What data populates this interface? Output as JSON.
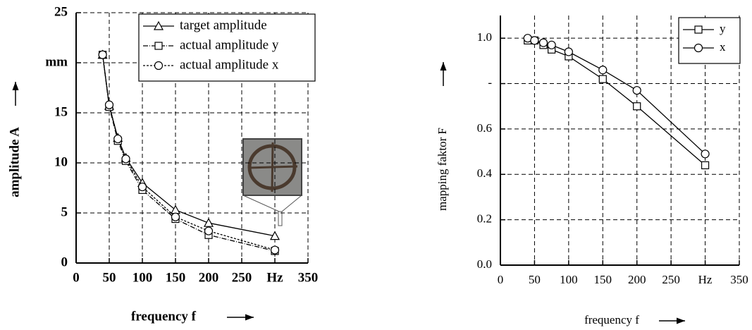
{
  "chart_data": [
    {
      "type": "line",
      "xlabel": "frequency f",
      "ylabel": "amplitude A",
      "x": [
        40,
        50,
        63,
        75,
        100,
        150,
        200,
        300
      ],
      "series": [
        {
          "name": "target amplitude",
          "color": "#000000",
          "marker": "triangle",
          "dash": "solid",
          "values": [
            20.8,
            15.7,
            12.5,
            10.5,
            8.0,
            5.3,
            4.0,
            2.7
          ]
        },
        {
          "name": "actual amplitude y",
          "color": "#000000",
          "marker": "square",
          "dash": "dash-dot",
          "values": [
            20.8,
            15.6,
            12.2,
            10.2,
            7.3,
            4.4,
            2.8,
            1.2
          ]
        },
        {
          "name": "actual amplitude x",
          "color": "#000000",
          "marker": "circle",
          "dash": "dotted",
          "values": [
            20.8,
            15.8,
            12.4,
            10.4,
            7.6,
            4.6,
            3.2,
            1.3
          ]
        }
      ],
      "xlim": [
        0,
        350
      ],
      "xticks": [
        0,
        50,
        100,
        150,
        200,
        250,
        {
          "value": 300,
          "label": "Hz"
        },
        350
      ],
      "ylim": [
        0,
        25
      ],
      "yticks": [
        0,
        5,
        10,
        15,
        {
          "value": 20,
          "label": "mm"
        },
        25
      ],
      "grid": true,
      "legend": "upper right"
    },
    {
      "type": "line",
      "xlabel": "frequency f",
      "ylabel": "mapping faktor F",
      "x": [
        40,
        50,
        63,
        75,
        100,
        150,
        200,
        300
      ],
      "series": [
        {
          "name": "y",
          "color": "#000000",
          "marker": "square",
          "dash": "solid",
          "values": [
            0.99,
            0.99,
            0.97,
            0.95,
            0.92,
            0.82,
            0.7,
            0.44
          ]
        },
        {
          "name": "x",
          "color": "#000000",
          "marker": "circle",
          "dash": "solid",
          "values": [
            1.0,
            0.99,
            0.98,
            0.97,
            0.94,
            0.86,
            0.77,
            0.49
          ]
        }
      ],
      "xlim": [
        0,
        350
      ],
      "xticks": [
        0,
        50,
        100,
        150,
        200,
        250,
        {
          "value": 300,
          "label": "Hz"
        },
        350
      ],
      "ylim": [
        0,
        1.1
      ],
      "yticks": [
        {
          "value": 0,
          "label": "0.0"
        },
        0.2,
        0.4,
        0.6,
        {
          "value": 0.8,
          "label": "-"
        },
        {
          "value": 1.0,
          "label": "1.0"
        }
      ],
      "grid": true,
      "legend": "upper right"
    }
  ]
}
